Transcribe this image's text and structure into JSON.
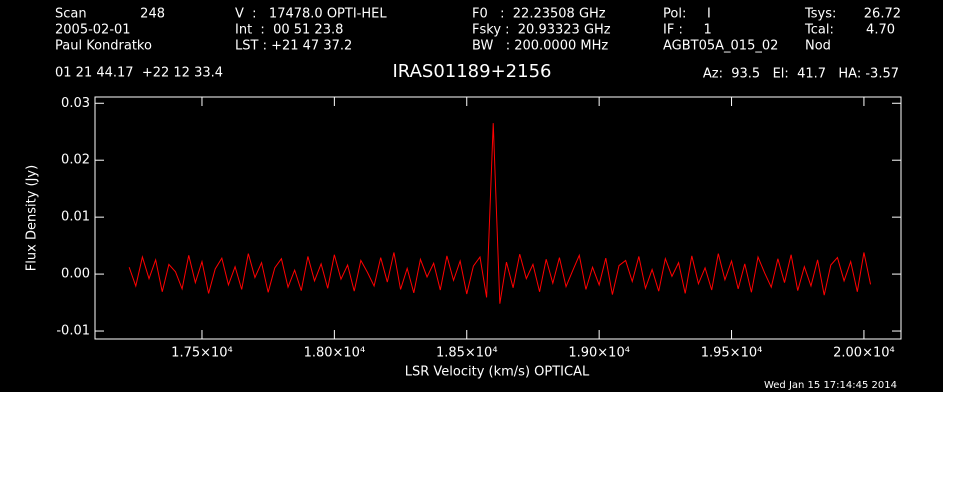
{
  "chart_data": {
    "type": "line",
    "header": [
      [
        "Scan",
        "248",
        "V  :   17478.0 OPTI-HEL",
        "F0   :  22.23508 GHz",
        "Pol:     I",
        "Tsys:",
        "26.72"
      ],
      [
        "2005-02-01",
        "Int  :  00 51 23.8",
        "Fsky :  20.93323 GHz",
        "IF :     1",
        "Tcal:",
        "4.70"
      ],
      [
        "Paul Kondratko",
        "LST : +21 47 37.2",
        "BW   : 200.0000 MHz",
        "AGBT05A_015_02",
        "Nod"
      ]
    ],
    "position": "01 21 44.17  +22 12 33.4",
    "title": "IRAS01189+2156",
    "pointing": "Az:  93.5   El:  41.7   HA: -3.57",
    "x_label": "LSR Velocity (km/s) OPTICAL",
    "y_label": "Flux Density (Jy)",
    "timestamp": "Wed Jan 15 17:14:45 2014",
    "color": "#ff0000",
    "xlim": [
      17096,
      20140
    ],
    "ylim": [
      -0.0114,
      0.0311
    ],
    "xticks": [
      {
        "value": 17500,
        "label": "1.75×10⁴"
      },
      {
        "value": 18000,
        "label": "1.80×10⁴"
      },
      {
        "value": 18500,
        "label": "1.85×10⁴"
      },
      {
        "value": 19000,
        "label": "1.90×10⁴"
      },
      {
        "value": 19500,
        "label": "1.95×10⁴"
      },
      {
        "value": 20000,
        "label": "2.00×10⁴"
      }
    ],
    "yticks": [
      -0.01,
      {
        "value": 0,
        "label": "0.00"
      },
      0.01,
      0.02,
      0.03
    ],
    "x": [
      17225,
      17250,
      17275,
      17300,
      17325,
      17350,
      17375,
      17400,
      17425,
      17450,
      17475,
      17500,
      17525,
      17550,
      17575,
      17600,
      17625,
      17650,
      17675,
      17700,
      17725,
      17750,
      17775,
      17800,
      17825,
      17850,
      17875,
      17900,
      17925,
      17950,
      17975,
      18000,
      18025,
      18050,
      18075,
      18100,
      18125,
      18150,
      18175,
      18200,
      18225,
      18250,
      18275,
      18300,
      18325,
      18350,
      18375,
      18400,
      18425,
      18450,
      18475,
      18500,
      18525,
      18550,
      18575,
      18600,
      18625,
      18650,
      18675,
      18700,
      18725,
      18750,
      18775,
      18800,
      18825,
      18850,
      18875,
      18900,
      18925,
      18950,
      18975,
      19000,
      19025,
      19050,
      19075,
      19100,
      19125,
      19150,
      19175,
      19200,
      19225,
      19250,
      19275,
      19300,
      19325,
      19350,
      19375,
      19400,
      19425,
      19450,
      19475,
      19500,
      19525,
      19550,
      19575,
      19600,
      19625,
      19650,
      19675,
      19700,
      19725,
      19750,
      19775,
      19800,
      19825,
      19850,
      19875,
      19900,
      19925,
      19950,
      19975,
      20000,
      20025
    ],
    "values": [
      0.0012,
      -0.0021,
      0.003,
      -0.0008,
      0.0025,
      -0.0031,
      0.0017,
      0.0004,
      -0.0026,
      0.0033,
      -0.0015,
      0.0022,
      -0.0034,
      0.0009,
      0.0028,
      -0.0019,
      0.0013,
      -0.0027,
      0.0036,
      -0.0006,
      0.002,
      -0.0032,
      0.0011,
      0.0027,
      -0.0023,
      0.0007,
      -0.0029,
      0.0031,
      -0.0012,
      0.0018,
      -0.0025,
      0.0034,
      -0.0009,
      0.0016,
      -0.003,
      0.0024,
      0.0003,
      -0.0021,
      0.0029,
      -0.0014,
      0.0038,
      -0.0027,
      0.001,
      -0.0033,
      0.0026,
      -0.0005,
      0.0019,
      -0.0028,
      0.0032,
      -0.0011,
      0.0023,
      -0.0035,
      0.0014,
      0.003,
      -0.0041,
      0.0265,
      -0.0052,
      0.0021,
      -0.0024,
      0.0035,
      -0.0008,
      0.0017,
      -0.0031,
      0.0026,
      -0.0016,
      0.0029,
      -0.0022,
      0.0006,
      0.0033,
      -0.0027,
      0.0012,
      -0.0019,
      0.0028,
      -0.0036,
      0.0015,
      0.0024,
      -0.0013,
      0.0031,
      -0.0025,
      0.0008,
      -0.003,
      0.0027,
      -0.0004,
      0.002,
      -0.0034,
      0.0032,
      -0.0017,
      0.0011,
      -0.0028,
      0.0036,
      -0.001,
      0.0023,
      -0.0026,
      0.0018,
      -0.0032,
      0.003,
      0.0002,
      -0.0023,
      0.0027,
      -0.0015,
      0.0034,
      -0.0029,
      0.0013,
      -0.0021,
      0.0025,
      -0.0037,
      0.0016,
      0.0029,
      -0.0012,
      0.0022,
      -0.0031,
      0.0038,
      -0.0018
    ]
  }
}
